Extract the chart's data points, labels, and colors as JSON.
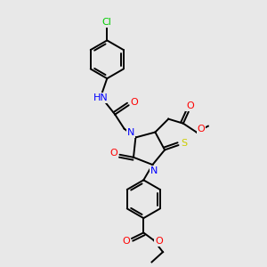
{
  "background_color": "#e8e8e8",
  "atom_colors": {
    "C": "#000000",
    "N": "#0000FF",
    "O": "#FF0000",
    "S": "#CCCC00",
    "Cl": "#00CC00",
    "H": "#808080"
  },
  "bond_color": "#000000",
  "line_width": 1.4,
  "font_size": 7.5,
  "xlim": [
    0,
    10
  ],
  "ylim": [
    0,
    10
  ]
}
